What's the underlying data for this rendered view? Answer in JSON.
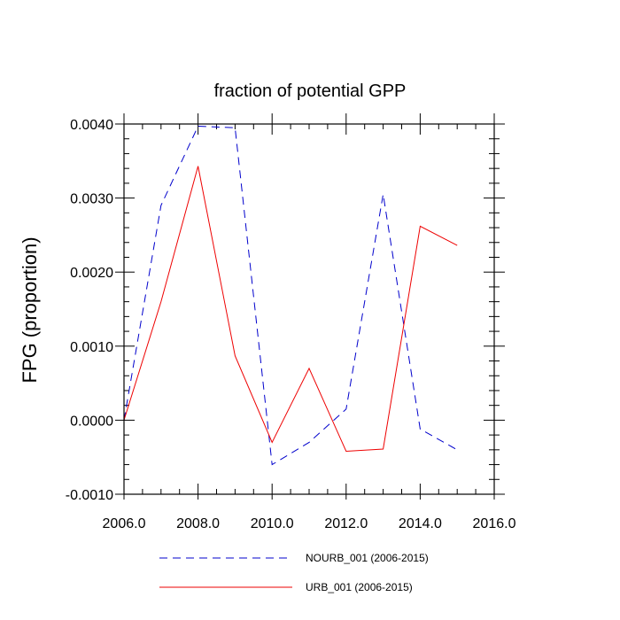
{
  "chart_data": {
    "type": "line",
    "title": "fraction of potential GPP",
    "xlabel": "",
    "ylabel": "FPG  (proportion)",
    "xlim": [
      2006,
      2016
    ],
    "ylim": [
      -0.001,
      0.004
    ],
    "xticks": [
      2006,
      2008,
      2010,
      2012,
      2014,
      2016
    ],
    "xtick_labels": [
      "2006.0",
      "2008.0",
      "2010.0",
      "2012.0",
      "2014.0",
      "2016.0"
    ],
    "yticks": [
      -0.001,
      0.0,
      0.001,
      0.002,
      0.003,
      0.004
    ],
    "ytick_labels": [
      "-0.0010",
      "0.0000",
      "0.0010",
      "0.0020",
      "0.0030",
      "0.0040"
    ],
    "x": [
      2006,
      2007,
      2008,
      2009,
      2010,
      2011,
      2012,
      2013,
      2014,
      2015
    ],
    "series": [
      {
        "name": "NOURB_001 (2006-2015)",
        "color": "#0000cc",
        "style": "dashed",
        "values": [
          0.0,
          0.0029,
          0.00397,
          0.00395,
          -0.0006,
          -0.0003,
          0.00015,
          0.00305,
          -0.00012,
          -0.0004
        ]
      },
      {
        "name": "URB_001 (2006-2015)",
        "color": "#ee0000",
        "style": "solid",
        "values": [
          0.0,
          0.0016,
          0.00343,
          0.00087,
          -0.0003,
          0.0007,
          -0.00042,
          -0.00039,
          0.00262,
          0.00236
        ]
      }
    ],
    "grid": false,
    "legend_position": "bottom"
  }
}
